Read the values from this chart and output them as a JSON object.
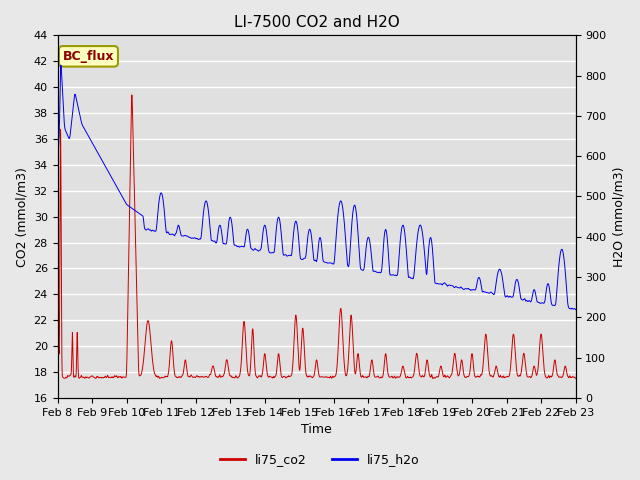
{
  "title": "LI-7500 CO2 and H2O",
  "xlabel": "Time",
  "ylabel_left": "CO2 (mmol/m3)",
  "ylabel_right": "H2O (mmol/m3)",
  "ylim_left": [
    16,
    44
  ],
  "ylim_right": [
    0,
    900
  ],
  "yticks_left": [
    16,
    18,
    20,
    22,
    24,
    26,
    28,
    30,
    32,
    34,
    36,
    38,
    40,
    42,
    44
  ],
  "yticks_right": [
    0,
    100,
    200,
    300,
    400,
    500,
    600,
    700,
    800,
    900
  ],
  "xtick_labels": [
    "Feb 8",
    "Feb 9",
    "Feb 10",
    "Feb 11",
    "Feb 12",
    "Feb 13",
    "Feb 14",
    "Feb 15",
    "Feb 16",
    "Feb 17",
    "Feb 18",
    "Feb 19",
    "Feb 20",
    "Feb 21",
    "Feb 22",
    "Feb 23"
  ],
  "co2_color": "#cc0000",
  "h2o_color": "#0000ee",
  "fig_bg_color": "#e8e8e8",
  "plot_bg_color": "#e0e0e0",
  "legend_entries": [
    "li75_co2",
    "li75_h2o"
  ],
  "annotation_text": "BC_flux",
  "title_fontsize": 11,
  "label_fontsize": 9,
  "tick_fontsize": 8
}
